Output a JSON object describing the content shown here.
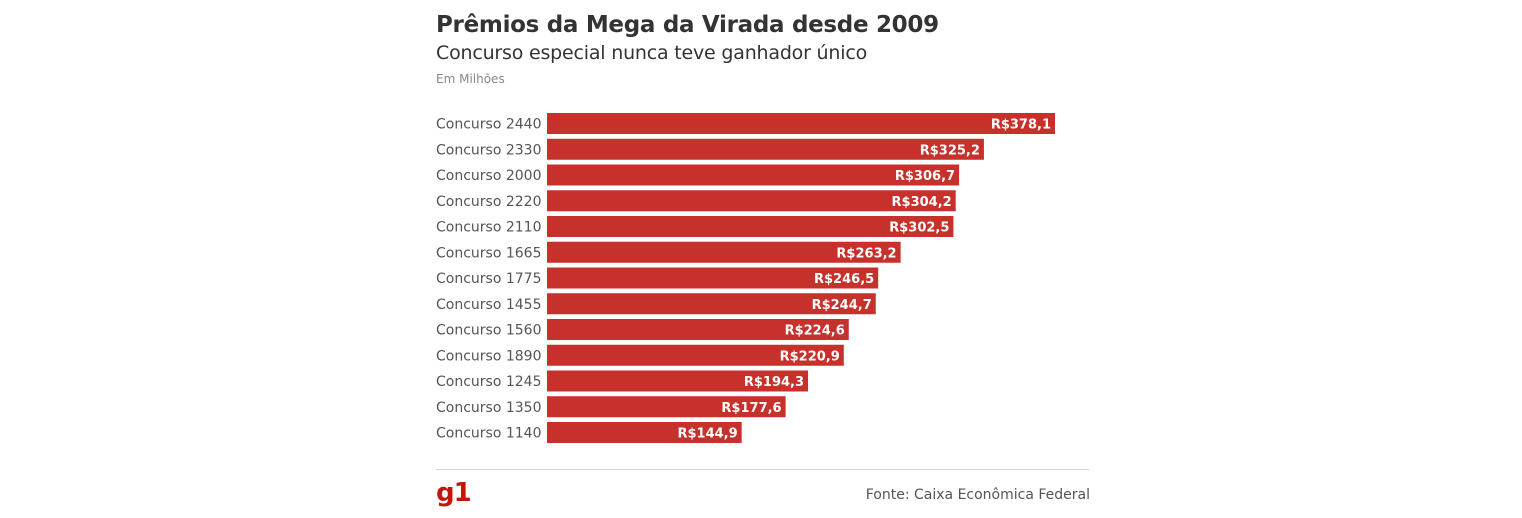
{
  "header": {
    "title": "Prêmios da Mega da Virada desde 2009",
    "subtitle": "Concurso especial nunca teve ganhador único",
    "unit_note": "Em Milhões"
  },
  "footer": {
    "logo_text": "g1",
    "source": "Fonte: Caixa Econômica Federal"
  },
  "colors": {
    "bar": "#c6312b",
    "logo": "#c4170c"
  },
  "chart_data": {
    "type": "bar",
    "orientation": "horizontal",
    "title": "Prêmios da Mega da Virada desde 2009",
    "subtitle": "Concurso especial nunca teve ganhador único",
    "ylabel": "Em Milhões",
    "categories": [
      "Concurso 2440",
      "Concurso 2330",
      "Concurso 2000",
      "Concurso 2220",
      "Concurso 2110",
      "Concurso 1665",
      "Concurso 1775",
      "Concurso 1455",
      "Concurso 1560",
      "Concurso 1890",
      "Concurso 1245",
      "Concurso 1350",
      "Concurso 1140"
    ],
    "values": [
      378.1,
      325.2,
      306.7,
      304.2,
      302.5,
      263.2,
      246.5,
      244.7,
      224.6,
      220.9,
      194.3,
      177.6,
      144.9
    ],
    "labels": [
      "R$378,1",
      "R$325,2",
      "R$306,7",
      "R$304,2",
      "R$302,5",
      "R$263,2",
      "R$246,5",
      "R$244,7",
      "R$224,6",
      "R$220,9",
      "R$194,3",
      "R$177,6",
      "R$144,9"
    ],
    "xlim": [
      0,
      378.1
    ],
    "grid": false,
    "legend": "none"
  }
}
